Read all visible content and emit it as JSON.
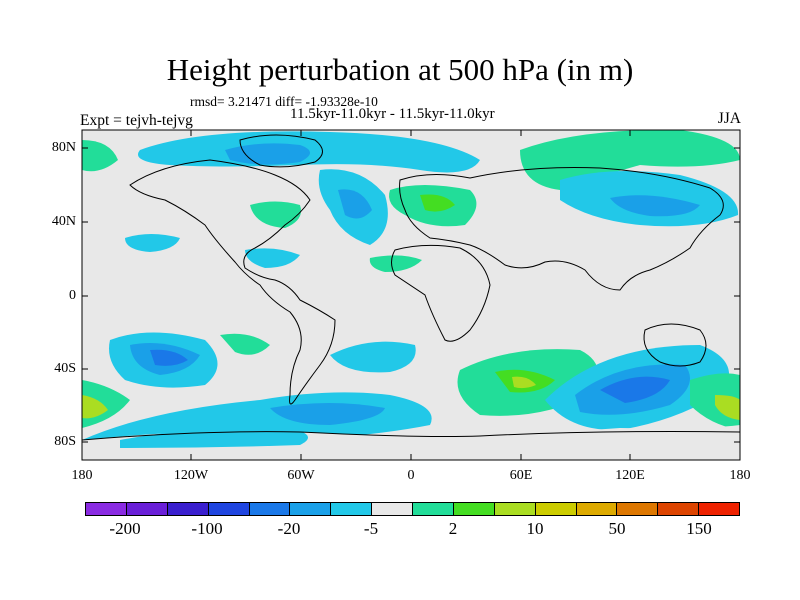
{
  "title": "Height perturbation at 500 hPa (in m)",
  "stats": "rmsd= 3.21471 diff= -1.93328e-10",
  "subtitle": "11.5kyr-11.0kyr - 11.5kyr-11.0kyr",
  "experiment": "Expt = tejvh-tejvg",
  "season": "JJA",
  "lat_labels": [
    "80N",
    "40N",
    "0",
    "40S",
    "80S"
  ],
  "lon_labels": [
    "180",
    "120W",
    "60W",
    "0",
    "60E",
    "120E",
    "180"
  ],
  "colorbar": {
    "colors": [
      "#8a2be2",
      "#6a1fd8",
      "#3a1fcf",
      "#1f45e0",
      "#1a78e8",
      "#1aa0e8",
      "#22c8e8",
      "#e8e8e8",
      "#22dd99",
      "#44dd22",
      "#aadd22",
      "#cccc00",
      "#ddaa00",
      "#dd7700",
      "#dd4400",
      "#ee2200"
    ],
    "labels": [
      "-200",
      "-100",
      "-20",
      "-5",
      "2",
      "10",
      "50",
      "150"
    ]
  }
}
